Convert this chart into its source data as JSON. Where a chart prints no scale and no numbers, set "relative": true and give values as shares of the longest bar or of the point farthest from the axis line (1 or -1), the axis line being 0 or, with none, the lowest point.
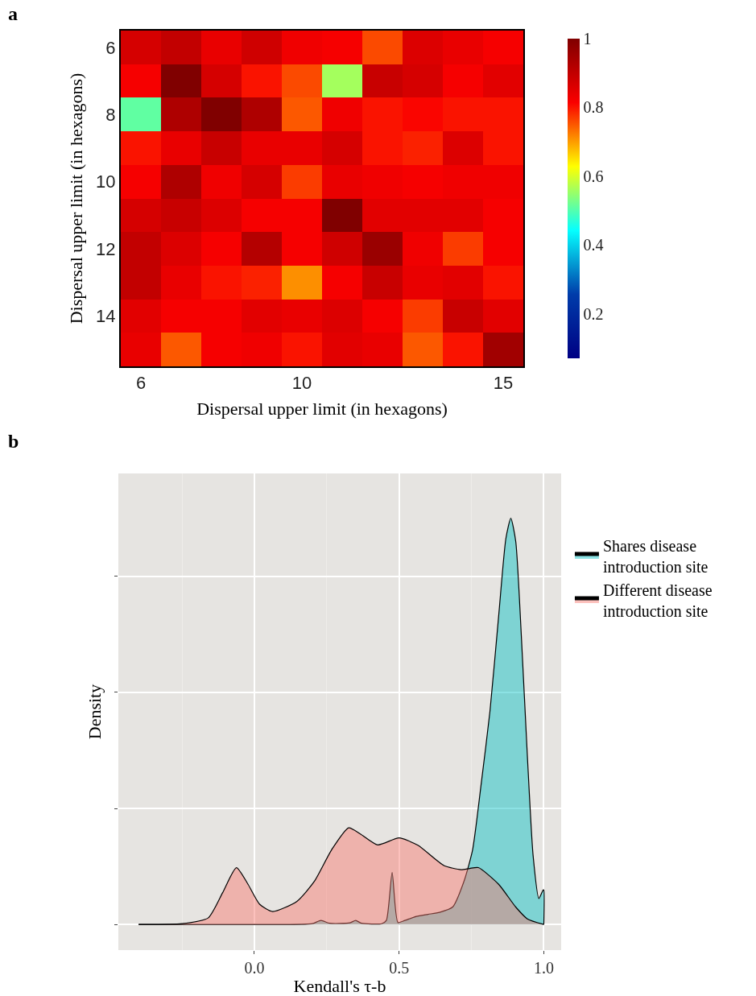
{
  "chart_data": [
    {
      "type": "heatmap",
      "title": "a",
      "xlabel": "Dispersal upper limit (in hexagons)",
      "ylabel": "Dispersal upper limit (in hexagons)",
      "categories": [
        "6",
        null,
        null,
        null,
        "10",
        null,
        null,
        null,
        null,
        "15"
      ],
      "y_categories": [
        "6",
        null,
        "8",
        null,
        "10",
        null,
        "12",
        null,
        "14",
        null
      ],
      "cells": [
        [
          0.87,
          0.9,
          0.84,
          0.88,
          0.83,
          0.82,
          0.76,
          0.86,
          0.84,
          0.82
        ],
        [
          0.82,
          1.0,
          0.87,
          0.8,
          0.76,
          0.56,
          0.89,
          0.87,
          0.82,
          0.85
        ],
        [
          0.51,
          0.93,
          1.0,
          0.93,
          0.75,
          0.83,
          0.8,
          0.81,
          0.8,
          0.8
        ],
        [
          0.8,
          0.84,
          0.89,
          0.84,
          0.84,
          0.87,
          0.8,
          0.79,
          0.86,
          0.8
        ],
        [
          0.82,
          0.93,
          0.83,
          0.87,
          0.77,
          0.84,
          0.83,
          0.82,
          0.83,
          0.83
        ],
        [
          0.87,
          0.89,
          0.86,
          0.82,
          0.82,
          1.0,
          0.85,
          0.85,
          0.85,
          0.82
        ],
        [
          0.9,
          0.86,
          0.82,
          0.92,
          0.82,
          0.88,
          0.96,
          0.83,
          0.77,
          0.82
        ],
        [
          0.9,
          0.84,
          0.8,
          0.79,
          0.71,
          0.82,
          0.89,
          0.84,
          0.85,
          0.8
        ],
        [
          0.85,
          0.82,
          0.82,
          0.85,
          0.84,
          0.86,
          0.82,
          0.77,
          0.89,
          0.85
        ],
        [
          0.84,
          0.75,
          0.82,
          0.83,
          0.8,
          0.85,
          0.84,
          0.75,
          0.8,
          0.95
        ]
      ],
      "clim": [
        0.07,
        1
      ],
      "cticks": [
        0.2,
        0.4,
        0.6,
        0.8,
        1
      ],
      "grid": false
    },
    {
      "type": "area",
      "title": "b",
      "xlabel": "Kendall's τ-b",
      "ylabel": "Density",
      "relative": true,
      "xlim": [
        -0.47,
        1.06
      ],
      "xticks": [
        {
          "value": -0.25,
          "label": null
        },
        {
          "value": 0,
          "label": "0.0"
        },
        {
          "value": 0.25,
          "label": null
        },
        {
          "value": 0.5,
          "label": "0.5"
        },
        {
          "value": 0.75,
          "label": null
        },
        {
          "value": 1.0,
          "label": "1.0"
        }
      ],
      "grid": true,
      "legend": "right",
      "series": [
        {
          "name": "Shares disease introduction site",
          "color": "#00bfc4",
          "x": [
            -0.4,
            0.1,
            0.2,
            0.23,
            0.26,
            0.33,
            0.35,
            0.37,
            0.44,
            0.456,
            0.476,
            0.496,
            0.52,
            0.56,
            0.6,
            0.64,
            0.685,
            0.724,
            0.754,
            0.784,
            0.814,
            0.844,
            0.869,
            0.886,
            0.903,
            0.923,
            0.943,
            0.963,
            0.983,
            0.993,
            0.998,
            1.0,
            1.0
          ],
          "values": [
            0,
            0,
            0.002,
            0.01,
            0.003,
            0.004,
            0.01,
            0.003,
            0.002,
            0.01,
            0.128,
            0.005,
            0.01,
            0.02,
            0.025,
            0.03,
            0.043,
            0.106,
            0.184,
            0.348,
            0.525,
            0.759,
            0.95,
            1.0,
            0.943,
            0.702,
            0.418,
            0.17,
            0.064,
            0.078,
            0.085,
            0.085,
            0
          ]
        },
        {
          "name": "Different disease introduction site",
          "color": "#f8766d",
          "x": [
            -0.4,
            -0.25,
            -0.16,
            -0.11,
            -0.062,
            -0.022,
            0.018,
            0.063,
            0.147,
            0.207,
            0.267,
            0.326,
            0.366,
            0.426,
            0.5,
            0.565,
            0.655,
            0.714,
            0.744,
            0.774,
            0.844,
            0.903,
            0.943,
            1.0
          ],
          "values": [
            0,
            0.002,
            0.016,
            0.078,
            0.14,
            0.099,
            0.05,
            0.032,
            0.057,
            0.106,
            0.184,
            0.238,
            0.223,
            0.196,
            0.213,
            0.195,
            0.145,
            0.135,
            0.138,
            0.14,
            0.099,
            0.043,
            0.014,
            0
          ]
        }
      ]
    }
  ]
}
